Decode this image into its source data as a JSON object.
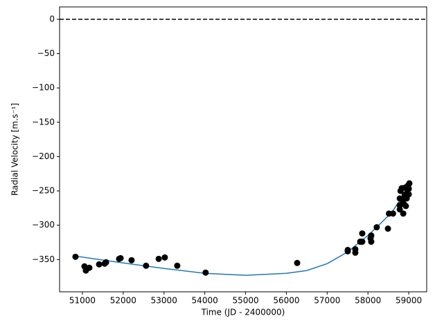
{
  "chart_data": {
    "type": "scatter",
    "x_label": "Time (JD - 2400000)",
    "y_label": "Radial Velocity [m.s⁻¹]",
    "xlim": [
      50440,
      59440
    ],
    "ylim": [
      -397,
      18
    ],
    "xticks": [
      51000,
      52000,
      53000,
      54000,
      55000,
      56000,
      57000,
      58000,
      59000
    ],
    "yticks": [
      0,
      {
        "value": -50,
        "label": "−50"
      },
      {
        "value": -100,
        "label": "−100"
      },
      {
        "value": -150,
        "label": "−150"
      },
      {
        "value": -200,
        "label": "−200"
      },
      {
        "value": -250,
        "label": "−250"
      },
      {
        "value": -300,
        "label": "−300"
      },
      {
        "value": -350,
        "label": "−350"
      }
    ],
    "reference_line": {
      "y": 0,
      "color": "#000000",
      "style": "dashed"
    },
    "series": [
      {
        "type": "line",
        "color": "#1f77b4",
        "x": [
          50830,
          52000,
          53000,
          54000,
          55000,
          56000,
          56500,
          57000,
          57500,
          58000,
          58300,
          58600,
          58900,
          59000
        ],
        "y": [
          -345,
          -355,
          -363,
          -370,
          -373,
          -370,
          -366,
          -356,
          -339,
          -315,
          -298,
          -280,
          -253,
          -242
        ]
      },
      {
        "type": "scatter",
        "color": "#000000",
        "x": [
          50830,
          51050,
          51085,
          51170,
          51410,
          51545,
          51580,
          51900,
          51935,
          52205,
          52560,
          52870,
          53020,
          53325,
          54020,
          56265,
          57505,
          57505,
          57690,
          57690,
          57810,
          57860,
          57860,
          58065,
          58080,
          58080,
          58215,
          58490,
          58515,
          58615,
          58780,
          58780,
          58780,
          58800,
          58830,
          58850,
          58865,
          58880,
          58900,
          58915,
          58930,
          58950,
          58965,
          58985,
          59000,
          59015,
          59000
        ],
        "y": [
          -346,
          -360,
          -366,
          -362,
          -357,
          -356,
          -354,
          -349,
          -348,
          -351,
          -359,
          -349,
          -347,
          -359,
          -369,
          -355,
          -336,
          -338,
          -340,
          -335,
          -324,
          -312,
          -324,
          -319,
          -315,
          -324,
          -303,
          -305,
          -283,
          -283,
          -261,
          -271,
          -277,
          -250,
          -246,
          -264,
          -283,
          -269,
          -256,
          -245,
          -272,
          -261,
          -251,
          -242,
          -247,
          -239,
          -255
        ]
      }
    ]
  }
}
